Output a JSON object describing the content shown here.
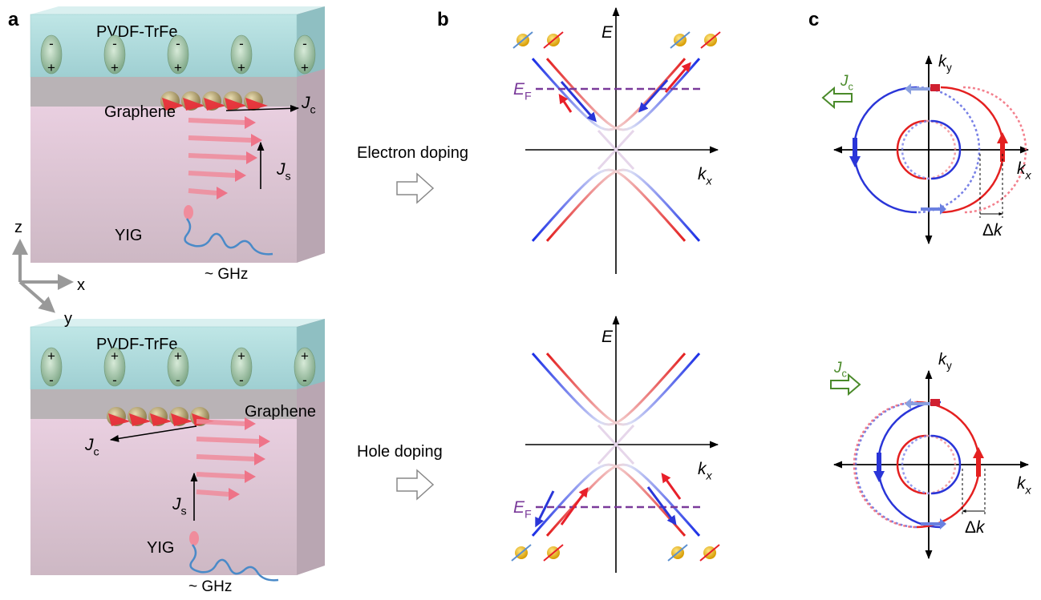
{
  "panel_labels": {
    "a": "a",
    "b": "b",
    "c": "c"
  },
  "heterostructures": [
    {
      "top_layer": "PVDF-TrFe",
      "dipoles": [
        {
          "upper": "-",
          "lower": "+"
        },
        {
          "upper": "-",
          "lower": "+"
        },
        {
          "upper": "-",
          "lower": "+"
        },
        {
          "upper": "-",
          "lower": "+"
        },
        {
          "upper": "-",
          "lower": "+"
        }
      ],
      "interface": "Graphene",
      "charge_current": {
        "symbol": "J",
        "subscript": "c"
      },
      "spin_current": {
        "symbol": "J",
        "subscript": "s"
      },
      "substrate": "YIG",
      "excitation": "~ GHz"
    },
    {
      "top_layer": "PVDF-TrFe",
      "dipoles": [
        {
          "upper": "+",
          "lower": "-"
        },
        {
          "upper": "+",
          "lower": "-"
        },
        {
          "upper": "+",
          "lower": "-"
        },
        {
          "upper": "+",
          "lower": "-"
        },
        {
          "upper": "+",
          "lower": "-"
        }
      ],
      "interface": "Graphene",
      "charge_current": {
        "symbol": "J",
        "subscript": "c"
      },
      "spin_current": {
        "symbol": "J",
        "subscript": "s"
      },
      "substrate": "YIG",
      "excitation": "~ GHz"
    }
  ],
  "coordinate_axes": {
    "z": "z",
    "x": "x",
    "y": "y"
  },
  "dopings": [
    "Electron doping",
    "Hole doping"
  ],
  "band_diagrams": [
    {
      "energy_axis": "E",
      "momentum_axis": {
        "symbol": "k",
        "subscript": "x"
      },
      "fermi_level": {
        "symbol": "E",
        "subscript": "F"
      }
    },
    {
      "energy_axis": "E",
      "momentum_axis": {
        "symbol": "k",
        "subscript": "x"
      },
      "fermi_level": {
        "symbol": "E",
        "subscript": "F"
      }
    }
  ],
  "fermi_contours": [
    {
      "charge_current": {
        "symbol": "J",
        "subscript": "c"
      },
      "ky": {
        "symbol": "k",
        "subscript": "y"
      },
      "kx": {
        "symbol": "k",
        "subscript": "x"
      },
      "shift": {
        "prefix": "Δ",
        "symbol": "k"
      }
    },
    {
      "charge_current": {
        "symbol": "J",
        "subscript": "c"
      },
      "ky": {
        "symbol": "k",
        "subscript": "y"
      },
      "kx": {
        "symbol": "k",
        "subscript": "x"
      },
      "shift": {
        "prefix": "Δ",
        "symbol": "k"
      }
    }
  ]
}
